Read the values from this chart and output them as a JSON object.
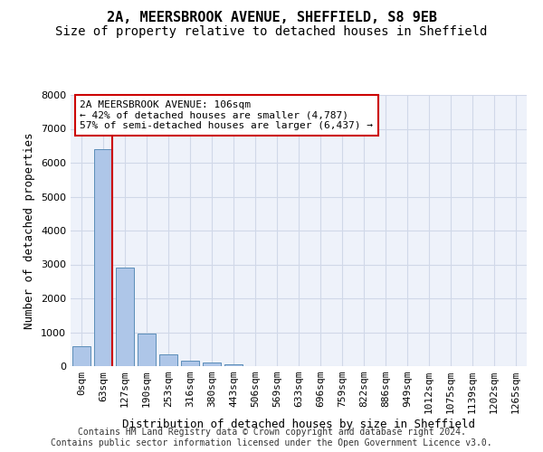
{
  "title_line1": "2A, MEERSBROOK AVENUE, SHEFFIELD, S8 9EB",
  "title_line2": "Size of property relative to detached houses in Sheffield",
  "xlabel": "Distribution of detached houses by size in Sheffield",
  "ylabel": "Number of detached properties",
  "bar_values": [
    580,
    6400,
    2920,
    970,
    360,
    155,
    95,
    60,
    0,
    0,
    0,
    0,
    0,
    0,
    0,
    0,
    0,
    0,
    0,
    0,
    0
  ],
  "bar_labels": [
    "0sqm",
    "63sqm",
    "127sqm",
    "190sqm",
    "253sqm",
    "316sqm",
    "380sqm",
    "443sqm",
    "506sqm",
    "569sqm",
    "633sqm",
    "696sqm",
    "759sqm",
    "822sqm",
    "886sqm",
    "949sqm",
    "1012sqm",
    "1075sqm",
    "1139sqm",
    "1202sqm",
    "1265sqm"
  ],
  "bar_color": "#aec6e8",
  "bar_edge_color": "#5b8db8",
  "highlight_line_color": "#cc0000",
  "property_size": 106,
  "pct_smaller": 42,
  "count_smaller": 4787,
  "pct_larger": 57,
  "count_larger": 6437,
  "annotation_box_color": "#cc0000",
  "ylim": [
    0,
    8000
  ],
  "yticks": [
    0,
    1000,
    2000,
    3000,
    4000,
    5000,
    6000,
    7000,
    8000
  ],
  "grid_color": "#d0d8e8",
  "background_color": "#eef2fa",
  "footer_line1": "Contains HM Land Registry data © Crown copyright and database right 2024.",
  "footer_line2": "Contains public sector information licensed under the Open Government Licence v3.0.",
  "title_fontsize": 11,
  "subtitle_fontsize": 10,
  "axis_label_fontsize": 9,
  "tick_fontsize": 8,
  "annotation_fontsize": 8,
  "footer_fontsize": 7
}
